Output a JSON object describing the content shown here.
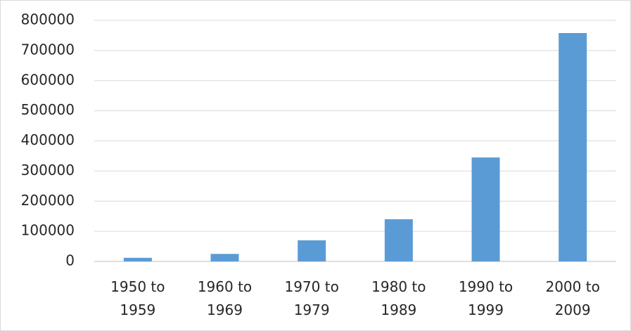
{
  "chart_data": {
    "type": "bar",
    "categories": [
      "1950 to 1959",
      "1960 to 1969",
      "1970 to 1979",
      "1980 to 1989",
      "1990 to 1999",
      "2000 to 2009"
    ],
    "values": [
      12000,
      25000,
      70000,
      140000,
      345000,
      758000
    ],
    "color": "#5b9bd5",
    "ylim": [
      0,
      800000
    ],
    "yticks": [
      0,
      100000,
      200000,
      300000,
      400000,
      500000,
      600000,
      700000,
      800000
    ],
    "grid": true
  }
}
